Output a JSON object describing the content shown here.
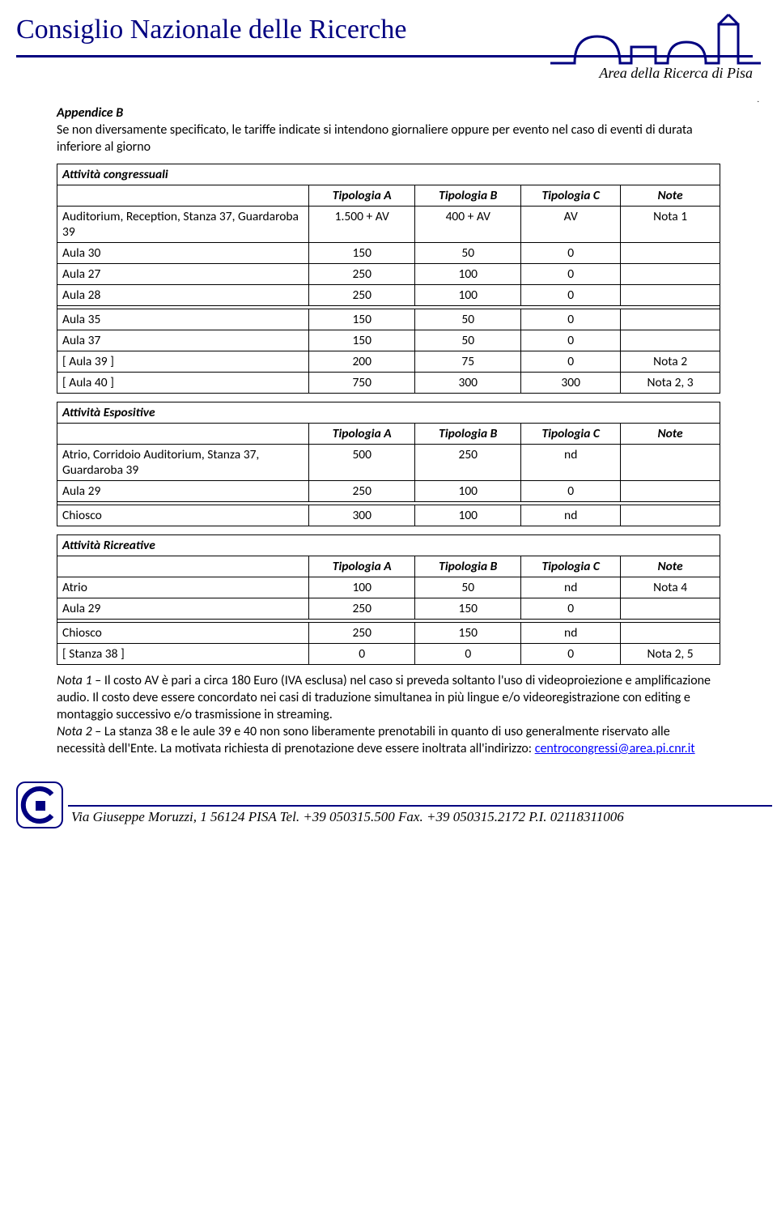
{
  "header": {
    "org": "Consiglio Nazionale delle Ricerche",
    "area": "Area della Ricerca di Pisa",
    "colors": {
      "rule": "#000080"
    }
  },
  "appendix": {
    "title": "Appendice B",
    "intro": "Se non diversamente specificato, le tariffe indicate si intendono giornaliere oppure per evento nel caso di eventi di durata inferiore al giorno"
  },
  "col_headers": [
    "Tipologia A",
    "Tipologia B",
    "Tipologia C",
    "Note"
  ],
  "congressuali": {
    "title": "Attività congressuali",
    "rows_a": [
      {
        "label": "Auditorium, Reception, Stanza 37, Guardaroba 39",
        "a": "1.500 + AV",
        "b": "400 + AV",
        "c": "AV",
        "n": "Nota 1"
      },
      {
        "label": "Aula 30",
        "a": "150",
        "b": "50",
        "c": "0",
        "n": ""
      },
      {
        "label": "Aula 27",
        "a": "250",
        "b": "100",
        "c": "0",
        "n": ""
      },
      {
        "label": "Aula 28",
        "a": "250",
        "b": "100",
        "c": "0",
        "n": ""
      }
    ],
    "rows_b": [
      {
        "label": "Aula 35",
        "a": "150",
        "b": "50",
        "c": "0",
        "n": ""
      },
      {
        "label": "Aula 37",
        "a": "150",
        "b": "50",
        "c": "0",
        "n": ""
      },
      {
        "label": "[ Aula 39 ]",
        "a": "200",
        "b": "75",
        "c": "0",
        "n": "Nota 2"
      },
      {
        "label": "[ Aula 40 ]",
        "a": "750",
        "b": "300",
        "c": "300",
        "n": "Nota 2, 3"
      }
    ]
  },
  "espositive": {
    "title": "Attività Espositive",
    "rows_a": [
      {
        "label": "Atrio, Corridoio Auditorium, Stanza 37, Guardaroba 39",
        "a": "500",
        "b": "250",
        "c": "nd",
        "n": ""
      },
      {
        "label": "Aula 29",
        "a": "250",
        "b": "100",
        "c": "0",
        "n": ""
      }
    ],
    "rows_b": [
      {
        "label": "Chiosco",
        "a": "300",
        "b": "100",
        "c": "nd",
        "n": ""
      }
    ]
  },
  "ricreative": {
    "title": "Attività Ricreative",
    "rows_a": [
      {
        "label": "Atrio",
        "a": "100",
        "b": "50",
        "c": "nd",
        "n": "Nota 4"
      },
      {
        "label": "Aula 29",
        "a": "250",
        "b": "150",
        "c": "0",
        "n": ""
      }
    ],
    "rows_b": [
      {
        "label": "Chiosco",
        "a": "250",
        "b": "150",
        "c": "nd",
        "n": ""
      },
      {
        "label": "[ Stanza 38 ]",
        "a": "0",
        "b": "0",
        "c": "0",
        "n": "Nota 2, 5"
      }
    ]
  },
  "notes": {
    "n1_label": "Nota 1",
    "n1_text": " – Il costo AV è pari a circa 180 Euro (IVA esclusa) nel caso si preveda soltanto l'uso di videoproiezione e amplificazione audio. Il costo deve essere concordato nei casi di traduzione simultanea in più lingue e/o videoregistrazione con editing e montaggio successivo e/o trasmissione in streaming.",
    "n2_label": "Nota 2",
    "n2_text": " – La stanza 38 e le aule 39 e 40 non sono liberamente prenotabili in quanto di uso generalmente riservato alle necessità dell'Ente. La motivata richiesta di prenotazione deve essere inoltrata all'indirizzo: ",
    "email": "centrocongressi@area.pi.cnr.it"
  },
  "footer": {
    "text": "Via Giuseppe Moruzzi, 1 56124 PISA Tel. +39 050315.500 Fax. +39 050315.2172 P.I. 02118311006"
  },
  "style": {
    "cell_border": "#000000",
    "link_color": "#0000ff",
    "font_body": "Calibri",
    "font_header": "Brush Script",
    "col_widths_pct": [
      38,
      16,
      16,
      15,
      15
    ]
  }
}
